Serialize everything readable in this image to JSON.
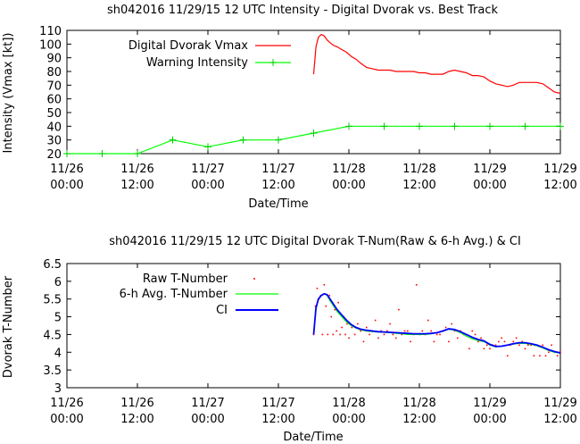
{
  "chart_data": [
    {
      "type": "line",
      "title": "sh042016 11/29/15  12 UTC Intensity - Digital Dvorak vs. Best Track",
      "xlabel": "Date/Time",
      "ylabel": "Intensity (Vmax [kt])",
      "ylim": [
        20,
        110
      ],
      "yticks": [
        "20",
        "30",
        "40",
        "50",
        "60",
        "70",
        "80",
        "90",
        "100",
        "110"
      ],
      "xlim": [
        0,
        84
      ],
      "xticks": [
        {
          "h": 0,
          "date": "11/26",
          "time": "00:00"
        },
        {
          "h": 12,
          "date": "11/26",
          "time": "12:00"
        },
        {
          "h": 24,
          "date": "11/27",
          "time": "00:00"
        },
        {
          "h": 36,
          "date": "11/27",
          "time": "12:00"
        },
        {
          "h": 48,
          "date": "11/28",
          "time": "00:00"
        },
        {
          "h": 60,
          "date": "11/28",
          "time": "12:00"
        },
        {
          "h": 72,
          "date": "11/29",
          "time": "00:00"
        },
        {
          "h": 84,
          "date": "11/29",
          "time": "12:00"
        }
      ],
      "legend_position": "top-left",
      "series": [
        {
          "name": "Digital Dvorak Vmax",
          "color": "#ff0000",
          "marker": "none",
          "x": [
            42.0,
            42.4,
            42.8,
            43.3,
            43.8,
            44.3,
            44.8,
            45.4,
            46.0,
            46.8,
            47.6,
            48.4,
            49.2,
            50.0,
            51.0,
            52.0,
            53.0,
            54.0,
            55.0,
            56.0,
            57.0,
            58.0,
            59.0,
            60.0,
            61.0,
            62.0,
            63.0,
            64.0,
            65.0,
            66.0,
            67.0,
            68.0,
            69.0,
            70.0,
            71.0,
            72.0,
            73.0,
            74.0,
            75.0,
            76.0,
            77.0,
            78.0,
            79.0,
            80.0,
            81.0,
            82.0,
            83.0,
            84.0
          ],
          "values": [
            78,
            98,
            105,
            107,
            106,
            103,
            101,
            99,
            98,
            96,
            94,
            91,
            89,
            86,
            83,
            82,
            81,
            81,
            81,
            80,
            80,
            80,
            80,
            79,
            79,
            78,
            78,
            78,
            80,
            81,
            80,
            79,
            77,
            77,
            76,
            73,
            71,
            70,
            69,
            70,
            72,
            72,
            72,
            72,
            71,
            68,
            65,
            64
          ]
        },
        {
          "name": "Warning Intensity",
          "color": "#00ff00",
          "marker": "plus",
          "x": [
            0,
            6,
            12,
            18,
            24,
            30,
            36,
            42,
            48,
            54,
            60,
            66,
            72,
            78,
            84
          ],
          "values": [
            20,
            20,
            20,
            30,
            25,
            30,
            30,
            35,
            40,
            40,
            40,
            40,
            40,
            40,
            40
          ]
        }
      ]
    },
    {
      "type": "line",
      "title": "sh042016 11/29/15  12 UTC Digital Dvorak T-Num(Raw & 6-h Avg.) & CI",
      "xlabel": "Date/Time",
      "ylabel": "Dvorak T-Number",
      "ylim": [
        3,
        6.5
      ],
      "yticks": [
        "3",
        "3.5",
        "4",
        "4.5",
        "5",
        "5.5",
        "6",
        "6.5"
      ],
      "xlim": [
        0,
        84
      ],
      "xticks": [
        {
          "h": 0,
          "date": "11/26",
          "time": "00:00"
        },
        {
          "h": 12,
          "date": "11/26",
          "time": "12:00"
        },
        {
          "h": 24,
          "date": "11/27",
          "time": "00:00"
        },
        {
          "h": 36,
          "date": "11/27",
          "time": "12:00"
        },
        {
          "h": 48,
          "date": "11/28",
          "time": "00:00"
        },
        {
          "h": 60,
          "date": "11/28",
          "time": "12:00"
        },
        {
          "h": 72,
          "date": "11/29",
          "time": "00:00"
        },
        {
          "h": 84,
          "date": "11/29",
          "time": "12:00"
        }
      ],
      "legend_position": "top-left",
      "series": [
        {
          "name": "Raw T-Number",
          "color": "#ff0000",
          "marker": "dot",
          "x": [
            42.0,
            42.3,
            42.6,
            42.9,
            43.2,
            43.5,
            43.8,
            44.1,
            44.4,
            44.7,
            45.0,
            45.3,
            45.6,
            45.9,
            46.2,
            46.5,
            46.8,
            47.1,
            47.4,
            47.7,
            48.0,
            48.5,
            49.0,
            49.5,
            50.0,
            50.5,
            51.0,
            51.5,
            52.0,
            52.5,
            53.0,
            53.5,
            54.0,
            54.5,
            55.0,
            55.5,
            56.0,
            56.5,
            57.0,
            57.5,
            58.0,
            58.5,
            59.0,
            59.5,
            60.0,
            60.5,
            61.0,
            61.5,
            62.0,
            62.5,
            63.0,
            63.5,
            64.0,
            64.5,
            65.0,
            65.5,
            66.0,
            66.5,
            67.0,
            67.5,
            68.0,
            68.5,
            69.0,
            69.5,
            70.0,
            70.5,
            71.0,
            71.5,
            72.0,
            72.5,
            73.0,
            73.5,
            74.0,
            74.5,
            75.0,
            75.5,
            76.0,
            76.5,
            77.0,
            77.5,
            78.0,
            78.5,
            79.0,
            79.5,
            80.0,
            80.5,
            81.0,
            81.5,
            82.0,
            82.5,
            83.0,
            83.5,
            84.0
          ],
          "values": [
            4.5,
            5.3,
            5.8,
            5.5,
            5.6,
            4.5,
            5.9,
            5.3,
            4.5,
            5.6,
            5.0,
            4.5,
            5.2,
            4.6,
            5.4,
            4.5,
            4.7,
            5.0,
            4.5,
            4.8,
            4.4,
            4.7,
            4.5,
            4.8,
            4.6,
            4.3,
            4.7,
            4.5,
            4.6,
            4.9,
            4.4,
            4.6,
            4.5,
            4.6,
            4.8,
            4.5,
            4.4,
            5.2,
            4.5,
            4.6,
            4.6,
            4.3,
            4.5,
            5.9,
            4.5,
            4.6,
            4.5,
            4.9,
            4.6,
            4.3,
            4.5,
            4.5,
            4.6,
            4.7,
            4.3,
            4.8,
            4.6,
            4.4,
            4.6,
            4.5,
            4.5,
            4.1,
            4.6,
            4.5,
            4.3,
            4.4,
            4.1,
            4.2,
            4.1,
            4.2,
            4.2,
            4.3,
            4.4,
            4.3,
            3.9,
            4.2,
            4.3,
            4.4,
            4.2,
            4.3,
            4.1,
            4.2,
            4.2,
            3.9,
            4.2,
            3.9,
            4.2,
            3.9,
            4.0,
            4.2,
            4.0,
            3.9,
            4.0
          ]
        },
        {
          "name": "6-h Avg. T-Number",
          "color": "#00ff00",
          "marker": "none",
          "x": [
            42.0,
            42.4,
            42.8,
            43.3,
            43.8,
            44.3,
            44.8,
            45.4,
            46.0,
            46.8,
            47.6,
            48.4,
            49.2,
            50.0,
            51.0,
            52.0,
            53.0,
            54.0,
            55.0,
            56.0,
            57.0,
            58.0,
            59.0,
            60.0,
            61.0,
            62.0,
            63.0,
            64.0,
            65.0,
            66.0,
            67.0,
            68.0,
            69.0,
            70.0,
            71.0,
            72.0,
            73.0,
            74.0,
            75.0,
            76.0,
            77.0,
            78.0,
            79.0,
            80.0,
            81.0,
            82.0,
            83.0,
            84.0
          ],
          "values": [
            4.5,
            5.2,
            5.5,
            5.6,
            5.65,
            5.6,
            5.45,
            5.3,
            5.15,
            5.0,
            4.85,
            4.75,
            4.68,
            4.63,
            4.6,
            4.58,
            4.57,
            4.56,
            4.55,
            4.53,
            4.52,
            4.5,
            4.5,
            4.5,
            4.5,
            4.52,
            4.55,
            4.6,
            4.65,
            4.62,
            4.55,
            4.45,
            4.38,
            4.33,
            4.3,
            4.2,
            4.15,
            4.17,
            4.2,
            4.23,
            4.25,
            4.25,
            4.22,
            4.18,
            4.12,
            4.05,
            4.0,
            3.98
          ]
        },
        {
          "name": "CI",
          "color": "#0000ff",
          "marker": "none",
          "x": [
            42.0,
            42.4,
            42.8,
            43.3,
            43.8,
            44.3,
            44.8,
            45.4,
            46.0,
            46.8,
            47.6,
            48.4,
            49.2,
            50.0,
            51.0,
            52.0,
            53.0,
            54.0,
            55.0,
            56.0,
            57.0,
            58.0,
            59.0,
            60.0,
            61.0,
            62.0,
            63.0,
            64.0,
            65.0,
            66.0,
            67.0,
            68.0,
            69.0,
            70.0,
            71.0,
            72.0,
            73.0,
            74.0,
            75.0,
            76.0,
            77.0,
            78.0,
            79.0,
            80.0,
            81.0,
            82.0,
            83.0,
            84.0
          ],
          "values": [
            4.5,
            5.25,
            5.5,
            5.6,
            5.65,
            5.62,
            5.5,
            5.35,
            5.2,
            5.05,
            4.9,
            4.78,
            4.7,
            4.65,
            4.62,
            4.6,
            4.58,
            4.57,
            4.56,
            4.55,
            4.54,
            4.53,
            4.52,
            4.52,
            4.52,
            4.53,
            4.55,
            4.6,
            4.66,
            4.64,
            4.58,
            4.5,
            4.42,
            4.36,
            4.32,
            4.22,
            4.16,
            4.17,
            4.2,
            4.24,
            4.27,
            4.27,
            4.24,
            4.2,
            4.14,
            4.07,
            4.02,
            3.98
          ]
        }
      ]
    }
  ]
}
